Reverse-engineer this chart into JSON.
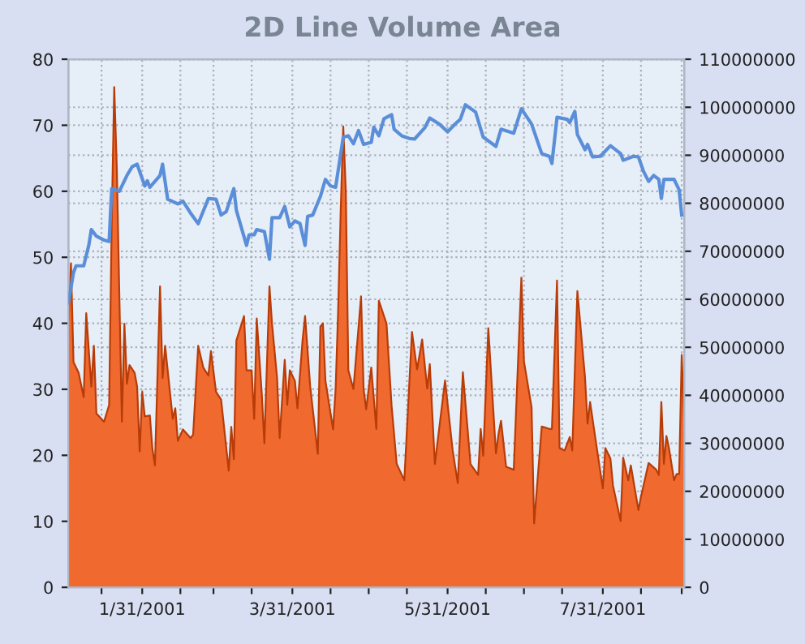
{
  "chart_data": {
    "type": "line",
    "title": "2D Line Volume Area",
    "xlim": [
      "2001-01-02",
      "2001-09-01"
    ],
    "xticks": [
      {
        "value": "2001-01-15",
        "label": null
      },
      {
        "value": "2001-01-31",
        "label": "1/31/2001"
      },
      {
        "value": "2001-02-15",
        "label": null
      },
      {
        "value": "2001-02-28",
        "label": null
      },
      {
        "value": "2001-03-15",
        "label": null
      },
      {
        "value": "2001-03-31",
        "label": "3/31/2001"
      },
      {
        "value": "2001-04-15",
        "label": null
      },
      {
        "value": "2001-04-30",
        "label": null
      },
      {
        "value": "2001-05-15",
        "label": null
      },
      {
        "value": "2001-05-31",
        "label": "5/31/2001"
      },
      {
        "value": "2001-06-15",
        "label": null
      },
      {
        "value": "2001-06-30",
        "label": null
      },
      {
        "value": "2001-07-15",
        "label": null
      },
      {
        "value": "2001-07-31",
        "label": "7/31/2001"
      },
      {
        "value": "2001-08-15",
        "label": null
      },
      {
        "value": "2001-08-31",
        "label": null
      }
    ],
    "ylim": [
      0,
      80
    ],
    "yticks": [
      0,
      10,
      20,
      30,
      40,
      50,
      60,
      70,
      80
    ],
    "y2lim": [
      0,
      110000000
    ],
    "y2ticks": [
      0,
      10000000,
      20000000,
      30000000,
      40000000,
      50000000,
      60000000,
      70000000,
      80000000,
      90000000,
      100000000,
      110000000
    ],
    "grid": true,
    "series": [
      {
        "type": "area",
        "axis": "y2",
        "color": "#f06a30",
        "x": [
          "2001-01-02",
          "2001-01-03",
          "2001-01-04",
          "2001-01-06",
          "2001-01-08",
          "2001-01-09",
          "2001-01-11",
          "2001-01-12",
          "2001-01-13",
          "2001-01-16",
          "2001-01-18",
          "2001-01-19",
          "2001-01-20",
          "2001-01-21",
          "2001-01-23",
          "2001-01-24",
          "2001-01-25",
          "2001-01-26",
          "2001-01-28",
          "2001-01-29",
          "2001-01-30",
          "2001-01-31",
          "2001-02-01",
          "2001-02-03",
          "2001-02-04",
          "2001-02-05",
          "2001-02-07",
          "2001-02-08",
          "2001-02-09",
          "2001-02-12",
          "2001-02-13",
          "2001-02-14",
          "2001-02-16",
          "2001-02-19",
          "2001-02-20",
          "2001-02-22",
          "2001-02-24",
          "2001-02-26",
          "2001-02-27",
          "2001-03-01",
          "2001-03-03",
          "2001-03-06",
          "2001-03-07",
          "2001-03-08",
          "2001-03-09",
          "2001-03-12",
          "2001-03-13",
          "2001-03-15",
          "2001-03-16",
          "2001-03-17",
          "2001-03-19",
          "2001-03-20",
          "2001-03-22",
          "2001-03-23",
          "2001-03-25",
          "2001-03-26",
          "2001-03-28",
          "2001-03-29",
          "2001-03-30",
          "2001-04-01",
          "2001-04-02",
          "2001-04-04",
          "2001-04-05",
          "2001-04-07",
          "2001-04-10",
          "2001-04-11",
          "2001-04-12",
          "2001-04-13",
          "2001-04-16",
          "2001-04-17",
          "2001-04-18",
          "2001-04-19",
          "2001-04-20",
          "2001-04-21",
          "2001-04-22",
          "2001-04-24",
          "2001-04-27",
          "2001-04-28",
          "2001-04-29",
          "2001-05-01",
          "2001-05-03",
          "2001-05-04",
          "2001-05-07",
          "2001-05-09",
          "2001-05-11",
          "2001-05-14",
          "2001-05-17",
          "2001-05-19",
          "2001-05-21",
          "2001-05-23",
          "2001-05-24",
          "2001-05-26",
          "2001-05-30",
          "2001-06-02",
          "2001-06-04",
          "2001-06-06",
          "2001-06-09",
          "2001-06-12",
          "2001-06-13",
          "2001-06-14",
          "2001-06-16",
          "2001-06-19",
          "2001-06-20",
          "2001-06-21",
          "2001-06-23",
          "2001-06-26",
          "2001-06-29",
          "2001-06-30",
          "2001-07-03",
          "2001-07-04",
          "2001-07-07",
          "2001-07-10",
          "2001-07-11",
          "2001-07-13",
          "2001-07-14",
          "2001-07-16",
          "2001-07-18",
          "2001-07-19",
          "2001-07-21",
          "2001-07-24",
          "2001-07-25",
          "2001-07-26",
          "2001-07-28",
          "2001-07-31",
          "2001-08-01",
          "2001-08-03",
          "2001-08-04",
          "2001-08-07",
          "2001-08-08",
          "2001-08-10",
          "2001-08-11",
          "2001-08-14",
          "2001-08-15",
          "2001-08-18",
          "2001-08-21",
          "2001-08-22",
          "2001-08-23",
          "2001-08-24",
          "2001-08-25",
          "2001-08-26",
          "2001-08-28",
          "2001-08-29",
          "2001-08-30",
          "2001-08-31",
          "2001-09-01"
        ],
        "values": [
          54900000,
          67500000,
          46900000,
          44700000,
          39600000,
          57100000,
          41800000,
          50300000,
          36200000,
          34500000,
          38000000,
          75600000,
          104200000,
          87600000,
          34500000,
          54900000,
          42400000,
          46300000,
          44700000,
          41800000,
          28300000,
          40700000,
          35600000,
          35800000,
          28900000,
          25400000,
          62700000,
          43600000,
          50300000,
          35100000,
          37300000,
          30500000,
          32900000,
          31100000,
          31800000,
          50300000,
          45800000,
          44100000,
          49200000,
          40700000,
          39100000,
          24300000,
          33400000,
          26700000,
          51400000,
          56500000,
          45200000,
          45200000,
          35100000,
          56000000,
          40200000,
          30000000,
          62700000,
          54900000,
          43600000,
          31100000,
          47400000,
          38000000,
          45200000,
          43000000,
          37300000,
          51400000,
          56500000,
          41900000,
          27800000,
          54300000,
          55000000,
          43000000,
          32900000,
          41300000,
          57800000,
          78500000,
          96000000,
          82500000,
          45200000,
          41300000,
          60600000,
          41300000,
          37100000,
          45800000,
          33000000,
          59700000,
          54900000,
          37800000,
          25700000,
          22300000,
          53200000,
          45400000,
          51600000,
          41400000,
          46500000,
          25700000,
          43100000,
          28500000,
          21700000,
          44800000,
          25700000,
          23400000,
          33000000,
          27400000,
          54000000,
          27900000,
          31900000,
          34700000,
          25100000,
          24500000,
          64500000,
          47100000,
          37500000,
          13300000,
          33500000,
          33000000,
          33000000,
          63900000,
          29000000,
          28500000,
          31300000,
          28500000,
          61700000,
          43700000,
          34100000,
          38600000,
          31300000,
          20600000,
          29000000,
          26800000,
          21200000,
          13800000,
          27000000,
          22300000,
          25400000,
          16100000,
          18900000,
          25900000,
          24500000,
          23400000,
          38600000,
          25700000,
          31500000,
          29000000,
          22300000,
          23600000,
          23600000,
          48400000,
          34100000
        ]
      },
      {
        "axis": "y",
        "color": "#5b8ed8",
        "x": [
          "2001-01-02",
          "2001-01-04",
          "2001-01-05",
          "2001-01-08",
          "2001-01-10",
          "2001-01-11",
          "2001-01-13",
          "2001-01-16",
          "2001-01-18",
          "2001-01-19",
          "2001-01-22",
          "2001-01-25",
          "2001-01-27",
          "2001-01-29",
          "2001-02-01",
          "2001-02-02",
          "2001-02-03",
          "2001-02-07",
          "2001-02-08",
          "2001-02-10",
          "2001-02-14",
          "2001-02-16",
          "2001-02-19",
          "2001-02-22",
          "2001-02-26",
          "2001-03-01",
          "2001-03-03",
          "2001-03-05",
          "2001-03-08",
          "2001-03-09",
          "2001-03-13",
          "2001-03-14",
          "2001-03-16",
          "2001-03-17",
          "2001-03-20",
          "2001-03-22",
          "2001-03-23",
          "2001-03-26",
          "2001-03-28",
          "2001-03-30",
          "2001-04-01",
          "2001-04-03",
          "2001-04-05",
          "2001-04-06",
          "2001-04-08",
          "2001-04-11",
          "2001-04-13",
          "2001-04-15",
          "2001-04-17",
          "2001-04-20",
          "2001-04-22",
          "2001-04-24",
          "2001-04-26",
          "2001-04-28",
          "2001-05-01",
          "2001-05-02",
          "2001-05-04",
          "2001-05-06",
          "2001-05-09",
          "2001-05-10",
          "2001-05-13",
          "2001-05-16",
          "2001-05-18",
          "2001-05-22",
          "2001-05-24",
          "2001-05-28",
          "2001-05-31",
          "2001-06-03",
          "2001-06-05",
          "2001-06-07",
          "2001-06-11",
          "2001-06-14",
          "2001-06-19",
          "2001-06-21",
          "2001-06-26",
          "2001-06-29",
          "2001-07-03",
          "2001-07-07",
          "2001-07-10",
          "2001-07-11",
          "2001-07-13",
          "2001-07-17",
          "2001-07-18",
          "2001-07-20",
          "2001-07-21",
          "2001-07-24",
          "2001-07-25",
          "2001-07-27",
          "2001-07-30",
          "2001-08-03",
          "2001-08-07",
          "2001-08-08",
          "2001-08-12",
          "2001-08-14",
          "2001-08-16",
          "2001-08-18",
          "2001-08-20",
          "2001-08-22",
          "2001-08-23",
          "2001-08-24",
          "2001-08-28",
          "2001-08-30",
          "2001-08-31"
        ],
        "values": [
          43.1,
          47.7,
          48.7,
          48.7,
          51.8,
          54.2,
          53.2,
          52.6,
          52.4,
          60.4,
          60.0,
          62.4,
          63.7,
          64.1,
          60.8,
          61.6,
          60.6,
          62.4,
          64.1,
          58.8,
          58.1,
          58.5,
          56.7,
          55.1,
          58.9,
          58.8,
          56.4,
          56.9,
          60.4,
          57.1,
          51.8,
          53.4,
          53.4,
          54.2,
          53.9,
          49.7,
          56.0,
          56.0,
          57.7,
          54.6,
          55.5,
          55.1,
          51.8,
          56.2,
          56.4,
          59.2,
          61.8,
          60.8,
          60.6,
          68.2,
          68.4,
          67.2,
          69.2,
          67.1,
          67.4,
          69.7,
          68.4,
          71.0,
          71.6,
          69.4,
          68.4,
          68.0,
          67.9,
          69.6,
          71.1,
          70.1,
          69.0,
          70.2,
          70.9,
          73.1,
          72.0,
          68.2,
          66.8,
          69.4,
          68.8,
          72.5,
          70.2,
          65.7,
          65.3,
          64.2,
          71.2,
          70.9,
          70.4,
          72.1,
          68.6,
          66.3,
          67.1,
          65.2,
          65.3,
          66.9,
          65.7,
          64.7,
          65.3,
          65.2,
          63.0,
          61.5,
          62.4,
          61.8,
          58.9,
          61.8,
          61.8,
          60.2,
          56.4
        ]
      }
    ]
  }
}
